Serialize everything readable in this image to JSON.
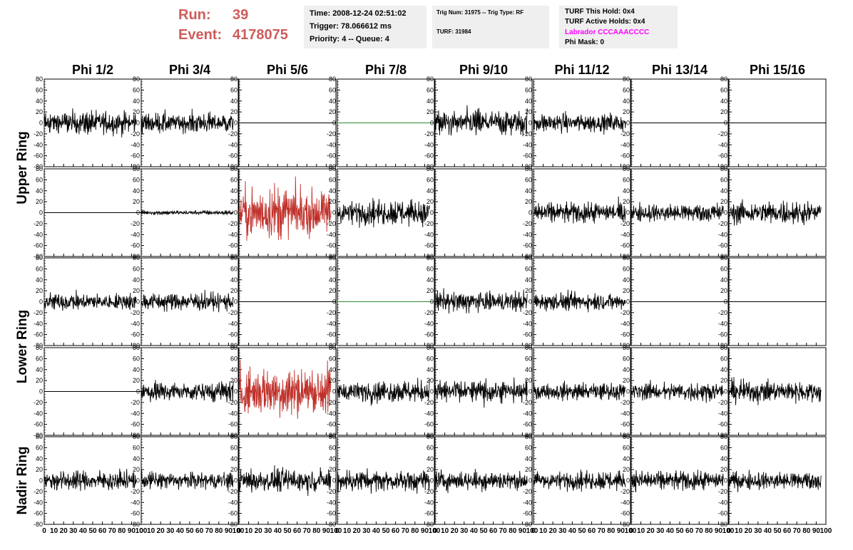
{
  "header": {
    "run_label": "Run:",
    "run_value": "39",
    "event_label": "Event:",
    "event_value": "4178075",
    "time": "Time: 2008-12-24 02:51:02",
    "trigger": "Trigger: 78.066612 ms",
    "priority": "Priority: 4 -- Queue: 4",
    "trig_num": "Trig Num: 31975 -- Trig Type: RF",
    "turf": "TURF: 31984",
    "turf_hold": "TURF This Hold: 0x4",
    "turf_active": "TURF Active Holds: 0x4",
    "labrador": "Labrador CCCAAACCCC",
    "phi_mask": "Phi Mask: 0"
  },
  "colors": {
    "run_text": "#cd5c5c",
    "labrador_text": "#ff00ff",
    "trace_default": "#000000",
    "trace_triggered": "#c0302a",
    "trace_flat_green": "#2e8b2e",
    "info_bg": "#efefef"
  },
  "chart_data": {
    "type": "line",
    "title": "",
    "columns": [
      "Phi 1/2",
      "Phi 3/4",
      "Phi 5/6",
      "Phi 7/8",
      "Phi 9/10",
      "Phi 11/12",
      "Phi 13/14",
      "Phi 15/16"
    ],
    "ring_labels": [
      "Upper Ring",
      "Lower Ring",
      "Nadir Ring"
    ],
    "xlim": [
      0,
      100
    ],
    "ylim": [
      -80,
      80
    ],
    "x_ticks": [
      0,
      10,
      20,
      30,
      40,
      50,
      60,
      70,
      80,
      90,
      100
    ],
    "y_ticks": [
      -80,
      -60,
      -40,
      -20,
      0,
      20,
      40,
      60,
      80
    ],
    "grid": false,
    "samples_per_trace": 260,
    "trace_span": [
      0,
      95
    ],
    "rows": [
      {
        "ring": "Upper Ring",
        "traces": [
          {
            "amp": 15,
            "style": "black"
          },
          {
            "amp": 13,
            "style": "black"
          },
          {
            "amp": 0,
            "style": "flat-black"
          },
          {
            "amp": 0,
            "style": "flat-green"
          },
          {
            "amp": 17,
            "style": "black"
          },
          {
            "amp": 12,
            "style": "black"
          },
          {
            "amp": 0,
            "style": "flat-black"
          },
          {
            "amp": 0,
            "style": "flat-black"
          }
        ]
      },
      {
        "ring": "Upper Ring",
        "traces": [
          {
            "amp": 0,
            "style": "flat-black"
          },
          {
            "amp": 3,
            "style": "black"
          },
          {
            "amp": 34,
            "style": "red"
          },
          {
            "amp": 16,
            "style": "black"
          },
          {
            "amp": 0,
            "style": "empty"
          },
          {
            "amp": 14,
            "style": "black"
          },
          {
            "amp": 12,
            "style": "black"
          },
          {
            "amp": 15,
            "style": "black"
          }
        ]
      },
      {
        "ring": "Lower Ring",
        "traces": [
          {
            "amp": 11,
            "style": "black"
          },
          {
            "amp": 12,
            "style": "black"
          },
          {
            "amp": 0,
            "style": "flat-black"
          },
          {
            "amp": 0,
            "style": "flat-green"
          },
          {
            "amp": 13,
            "style": "black"
          },
          {
            "amp": 11,
            "style": "black"
          },
          {
            "amp": 0,
            "style": "flat-black"
          },
          {
            "amp": 0,
            "style": "flat-black"
          }
        ]
      },
      {
        "ring": "Lower Ring",
        "traces": [
          {
            "amp": 0,
            "style": "flat-black"
          },
          {
            "amp": 13,
            "style": "black"
          },
          {
            "amp": 32,
            "style": "red"
          },
          {
            "amp": 14,
            "style": "black"
          },
          {
            "amp": 15,
            "style": "black"
          },
          {
            "amp": 11,
            "style": "black"
          },
          {
            "amp": 12,
            "style": "black"
          },
          {
            "amp": 14,
            "style": "black"
          }
        ]
      },
      {
        "ring": "Nadir Ring",
        "traces": [
          {
            "amp": 13,
            "style": "black"
          },
          {
            "amp": 11,
            "style": "black"
          },
          {
            "amp": 15,
            "style": "black"
          },
          {
            "amp": 14,
            "style": "black"
          },
          {
            "amp": 13,
            "style": "black"
          },
          {
            "amp": 12,
            "style": "black"
          },
          {
            "amp": 13,
            "style": "black"
          },
          {
            "amp": 12,
            "style": "black"
          }
        ]
      }
    ]
  }
}
